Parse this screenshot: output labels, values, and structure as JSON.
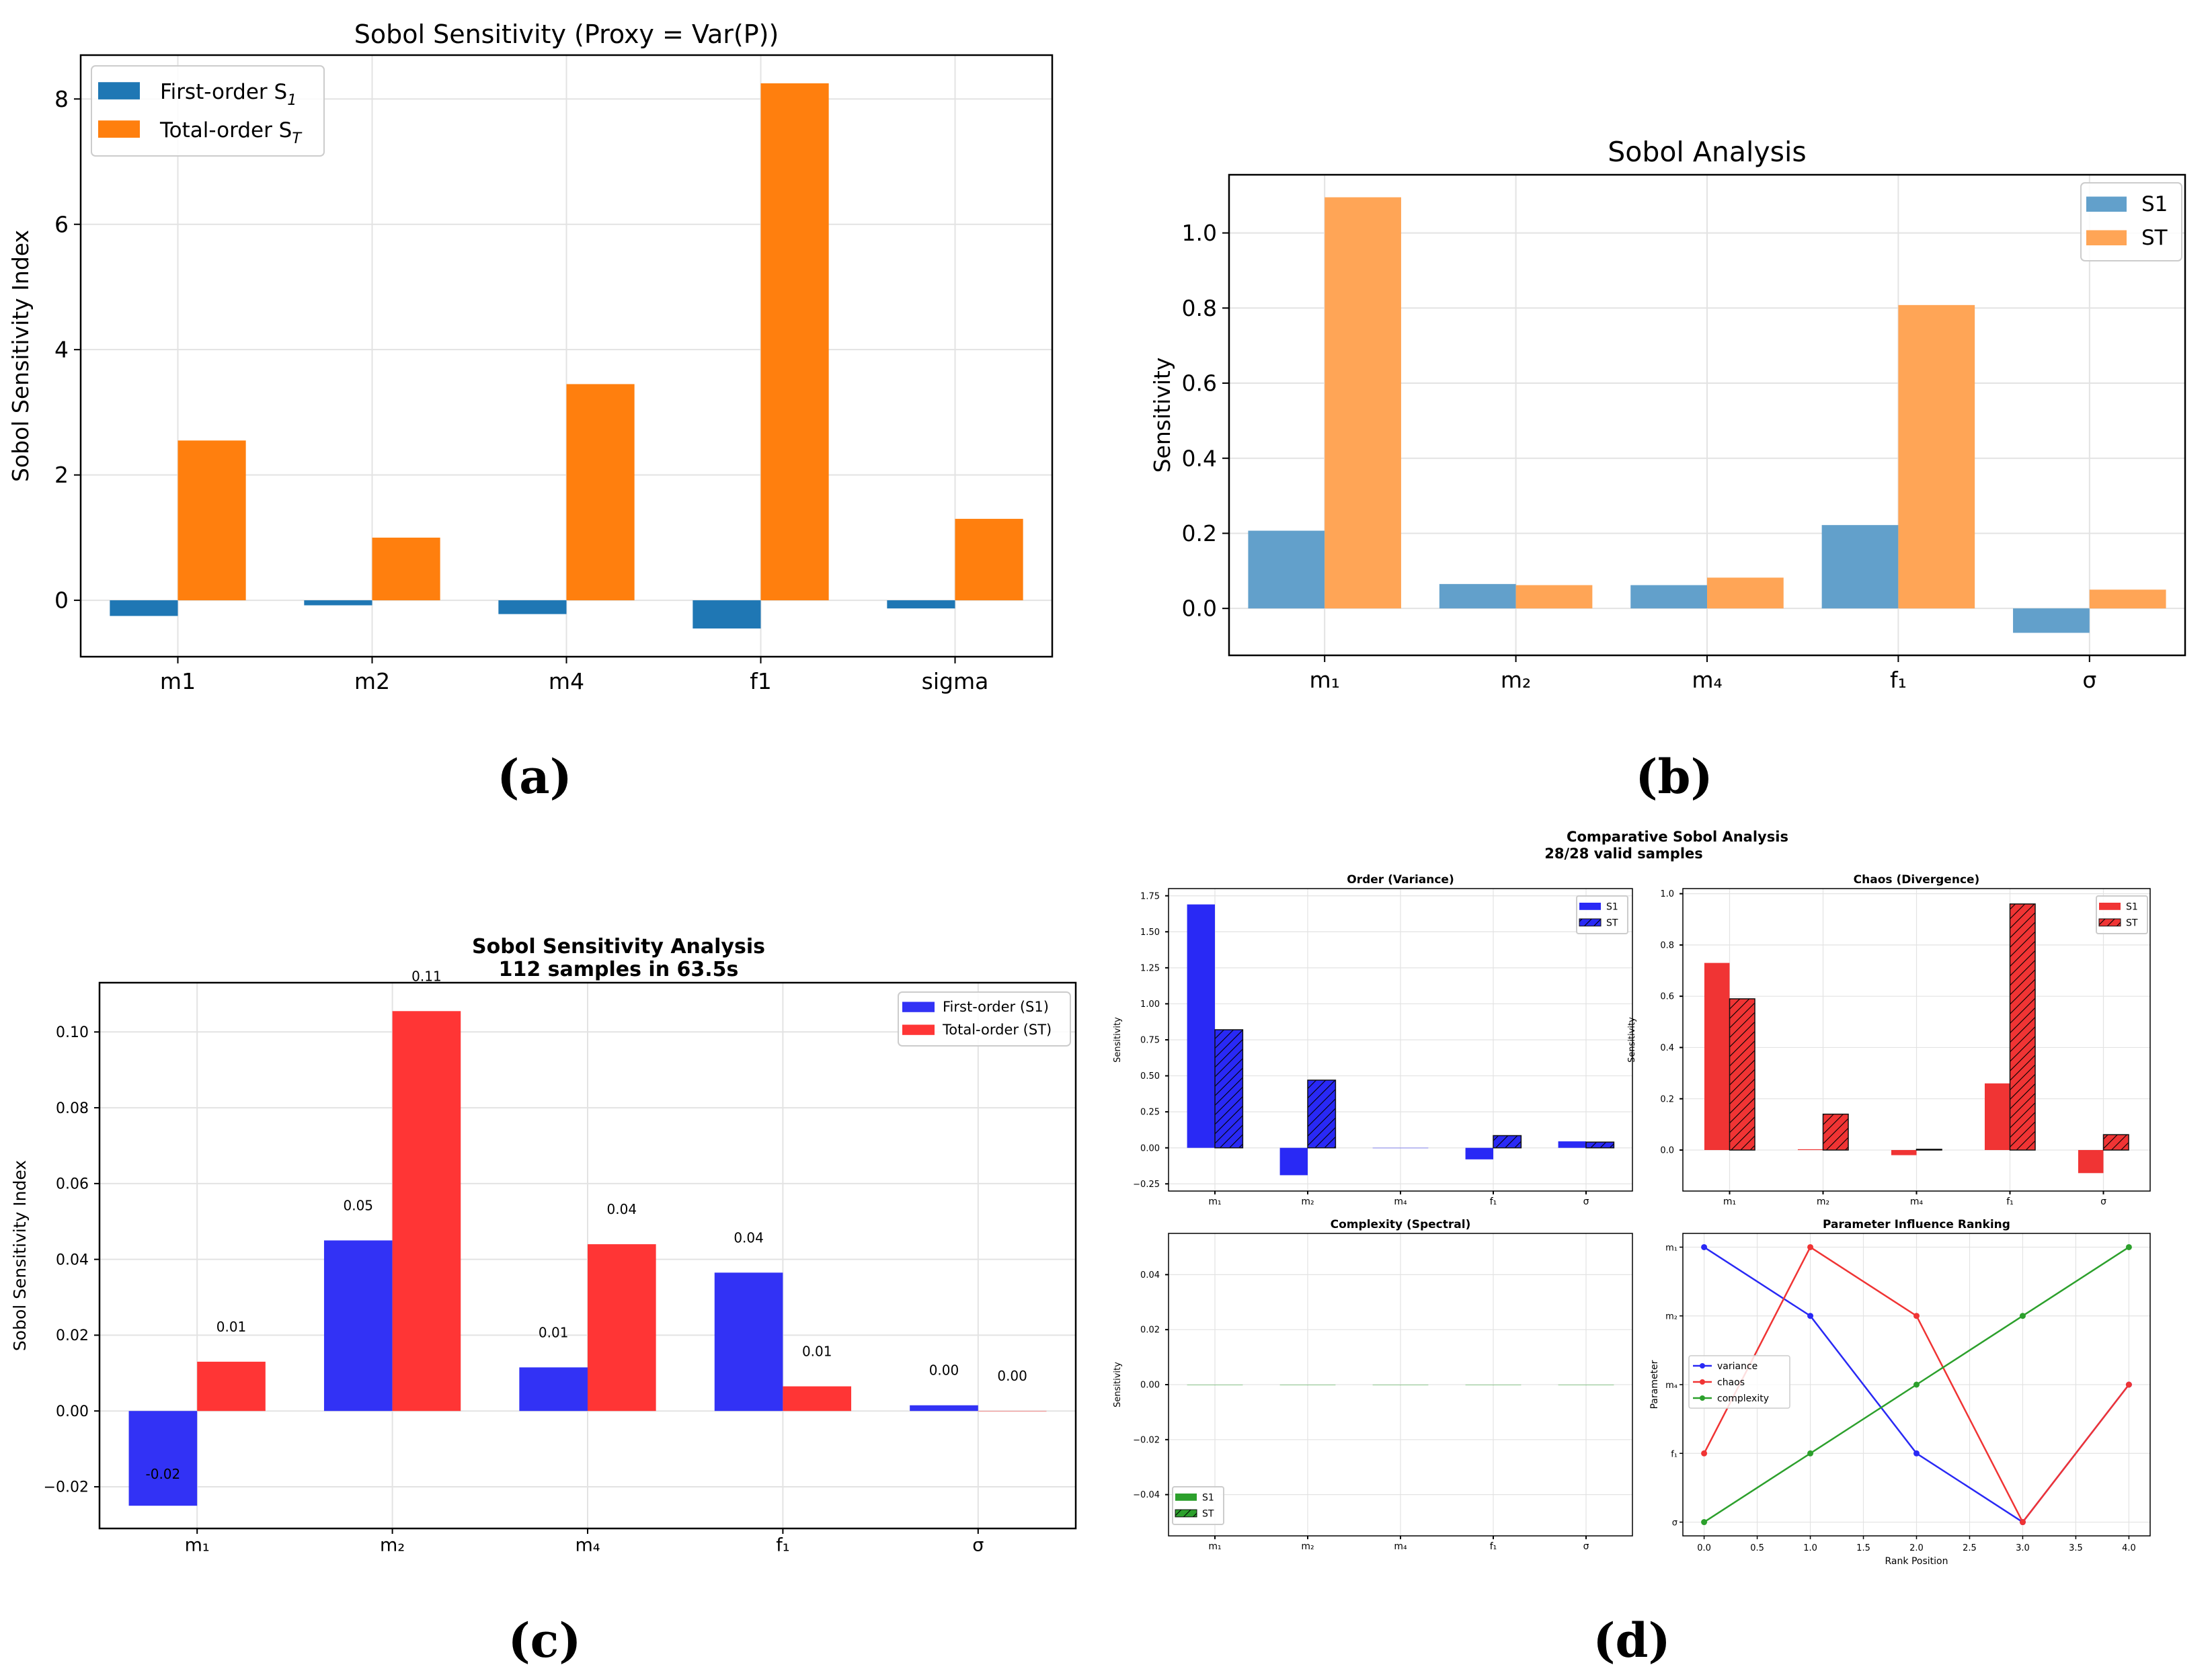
{
  "captions": {
    "a": "(a)",
    "b": "(b)",
    "c": "(c)",
    "d": "(d)"
  },
  "colors": {
    "a_s1": "#1f77b4",
    "a_st": "#ff7f0e",
    "b_s1": "#62a0cb",
    "b_st": "#ffa556",
    "c_s1": "#3232f5",
    "c_st": "#ff3535",
    "d_blue": "#2929f5",
    "d_red": "#f03434",
    "d_green": "#2ca02c"
  },
  "chart_data": [
    {
      "id": "a",
      "type": "bar",
      "title": "Sobol Sensitivity (Proxy = Var(P))",
      "xlabel": "",
      "ylabel": "Sobol Sensitivity Index",
      "categories": [
        "m1",
        "m2",
        "m4",
        "f1",
        "sigma"
      ],
      "series": [
        {
          "name": "First-order S",
          "sub": "1",
          "values": [
            -0.25,
            -0.08,
            -0.22,
            -0.45,
            -0.13
          ]
        },
        {
          "name": "Total-order S",
          "sub": "T",
          "values": [
            2.55,
            1.0,
            3.45,
            8.25,
            1.3
          ]
        }
      ],
      "ylim": [
        -0.9,
        8.7
      ],
      "yticks": [
        0,
        2,
        4,
        6,
        8
      ],
      "ytick_labels": [
        "0",
        "2",
        "4",
        "6",
        "8"
      ],
      "grid": true,
      "legend": "top-left"
    },
    {
      "id": "b",
      "type": "bar",
      "title": "Sobol Analysis",
      "xlabel": "",
      "ylabel": "Sensitivity",
      "categories": [
        "m₁",
        "m₂",
        "m₄",
        "f₁",
        "σ"
      ],
      "series": [
        {
          "name": "S1",
          "values": [
            0.207,
            0.065,
            0.062,
            0.222,
            -0.065
          ]
        },
        {
          "name": "ST",
          "values": [
            1.095,
            0.062,
            0.082,
            0.808,
            0.05
          ]
        }
      ],
      "ylim": [
        -0.125,
        1.155
      ],
      "yticks": [
        0,
        0.2,
        0.4,
        0.6,
        0.8,
        1.0
      ],
      "ytick_labels": [
        "0.0",
        "0.2",
        "0.4",
        "0.6",
        "0.8",
        "1.0"
      ],
      "grid": true,
      "legend": "top-right"
    },
    {
      "id": "c",
      "type": "bar",
      "title": "Sobol Sensitivity Analysis",
      "subtitle": "112 samples in 63.5s",
      "xlabel": "",
      "ylabel": "Sobol Sensitivity Index",
      "categories": [
        "m₁",
        "m₂",
        "m₄",
        "f₁",
        "σ"
      ],
      "series": [
        {
          "name": "First-order (S1)",
          "values": [
            -0.025,
            0.045,
            0.0115,
            0.0365,
            0.0015
          ],
          "labels": [
            "-0.02",
            "0.05",
            "0.01",
            "0.04",
            "0.00"
          ]
        },
        {
          "name": "Total-order (ST)",
          "values": [
            0.013,
            0.1055,
            0.044,
            0.0065,
            0.0
          ],
          "labels": [
            "0.01",
            "0.11",
            "0.04",
            "0.01",
            "0.00"
          ]
        }
      ],
      "ylim": [
        -0.031,
        0.113
      ],
      "yticks": [
        -0.02,
        0,
        0.02,
        0.04,
        0.06,
        0.08,
        0.1
      ],
      "ytick_labels": [
        "−0.02",
        "0.00",
        "0.02",
        "0.04",
        "0.06",
        "0.08",
        "0.10"
      ],
      "grid": true,
      "legend": "top-right"
    },
    {
      "id": "d1",
      "type": "bar",
      "suptitle": "Comparative Sobol Analysis",
      "suptitle2": "28/28 valid samples",
      "title": "Order (Variance)",
      "ylabel": "Sensitivity",
      "categories": [
        "m₁",
        "m₂",
        "m₄",
        "f₁",
        "σ"
      ],
      "series": [
        {
          "name": "S1",
          "values": [
            1.69,
            -0.19,
            0.0,
            -0.08,
            0.045
          ]
        },
        {
          "name": "ST",
          "values": [
            0.82,
            0.47,
            0.0,
            0.085,
            0.04
          ]
        }
      ],
      "ylim": [
        -0.3,
        1.8
      ],
      "yticks": [
        -0.25,
        0,
        0.25,
        0.5,
        0.75,
        1.0,
        1.25,
        1.5,
        1.75
      ],
      "ytick_labels": [
        "−0.25",
        "0.00",
        "0.25",
        "0.50",
        "0.75",
        "1.00",
        "1.25",
        "1.50",
        "1.75"
      ],
      "grid": true,
      "legend": "top-right"
    },
    {
      "id": "d2",
      "type": "bar",
      "title": "Chaos (Divergence)",
      "ylabel": "Sensitivity",
      "categories": [
        "m₁",
        "m₂",
        "m₄",
        "f₁",
        "σ"
      ],
      "series": [
        {
          "name": "S1",
          "values": [
            0.73,
            0.003,
            -0.02,
            0.26,
            -0.09
          ]
        },
        {
          "name": "ST",
          "values": [
            0.59,
            0.14,
            0.003,
            0.96,
            0.06
          ]
        }
      ],
      "ylim": [
        -0.16,
        1.02
      ],
      "yticks": [
        0,
        0.2,
        0.4,
        0.6,
        0.8,
        1.0
      ],
      "ytick_labels": [
        "0.0",
        "0.2",
        "0.4",
        "0.6",
        "0.8",
        "1.0"
      ],
      "grid": true,
      "legend": "top-right"
    },
    {
      "id": "d3",
      "type": "bar",
      "title": "Complexity (Spectral)",
      "ylabel": "Sensitivity",
      "categories": [
        "m₁",
        "m₂",
        "m₄",
        "f₁",
        "σ"
      ],
      "series": [
        {
          "name": "S1",
          "values": [
            0,
            0,
            0,
            0,
            0
          ]
        },
        {
          "name": "ST",
          "values": [
            0,
            0,
            0,
            0,
            0
          ]
        }
      ],
      "ylim": [
        -0.055,
        0.055
      ],
      "yticks": [
        -0.04,
        -0.02,
        0,
        0.02,
        0.04
      ],
      "ytick_labels": [
        "−0.04",
        "−0.02",
        "0.00",
        "0.02",
        "0.04"
      ],
      "grid": true,
      "legend": "bottom-left"
    },
    {
      "id": "d4",
      "type": "line",
      "title": "Parameter Influence Ranking",
      "xlabel": "Rank Position",
      "ylabel": "Parameter",
      "x": [
        0,
        1,
        2,
        3,
        4
      ],
      "ycategories": [
        "σ",
        "f₁",
        "m₄",
        "m₂",
        "m₁"
      ],
      "series": [
        {
          "name": "variance",
          "values": [
            4,
            3,
            1,
            0,
            2
          ]
        },
        {
          "name": "chaos",
          "values": [
            1,
            4,
            3,
            0,
            2
          ]
        },
        {
          "name": "complexity",
          "values": [
            0,
            1,
            2,
            3,
            4
          ]
        }
      ],
      "xlim": [
        -0.2,
        4.2
      ],
      "ylim": [
        -0.2,
        4.2
      ],
      "xticks": [
        0,
        0.5,
        1,
        1.5,
        2,
        2.5,
        3,
        3.5,
        4
      ],
      "xtick_labels": [
        "0.0",
        "0.5",
        "1.0",
        "1.5",
        "2.0",
        "2.5",
        "3.0",
        "3.5",
        "4.0"
      ],
      "grid": true,
      "legend": "center-left"
    }
  ]
}
